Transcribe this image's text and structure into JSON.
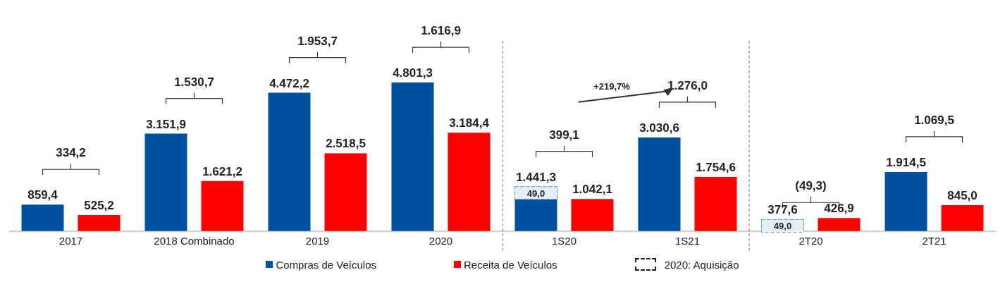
{
  "chart_data": {
    "type": "bar",
    "categories": [
      "2017",
      "2018 Combinado",
      "2019",
      "2020",
      "1S20",
      "1S21",
      "2T20",
      "2T21"
    ],
    "series": [
      {
        "name": "Compras de Veículos",
        "color": "#0050a0",
        "values": [
          859.4,
          3151.9,
          4472.2,
          4801.3,
          1441.3,
          3030.6,
          377.6,
          1914.5
        ],
        "value_labels": [
          "859,4",
          "3.151,9",
          "4.472,2",
          "4.801,3",
          "1.441,3",
          "3.030,6",
          "377,6",
          "1.914,5"
        ]
      },
      {
        "name": "Receita de Veículos",
        "color": "#ff0000",
        "values": [
          525.2,
          1621.2,
          2518.5,
          3184.4,
          1042.1,
          1754.6,
          426.9,
          845.0
        ],
        "value_labels": [
          "525,2",
          "1.621,2",
          "2.518,5",
          "3.184,4",
          "1.042,1",
          "1.754,6",
          "426,9",
          "845,0"
        ]
      }
    ],
    "legend": "bottom",
    "annotations": [
      "334,2",
      "1.530,7",
      "1.953,7",
      "1.616,9",
      "399,1",
      "1.276,0",
      "(49,3)",
      "1.069,5",
      "49,0",
      "49,0",
      "+219,7%",
      "2020: Aquisição"
    ]
  }
}
